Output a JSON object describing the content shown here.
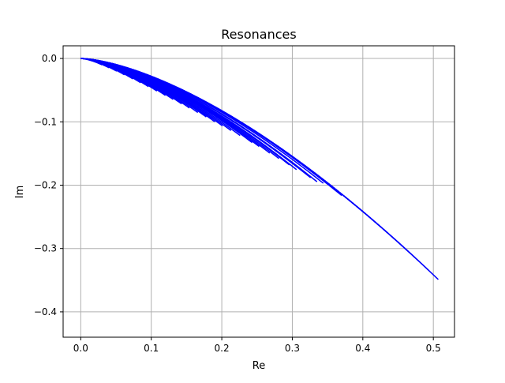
{
  "chart_data": {
    "type": "line",
    "title": "Resonances",
    "xlabel": "Re",
    "ylabel": "Im",
    "xlim": [
      -0.025,
      0.53
    ],
    "ylim": [
      -0.44,
      0.02
    ],
    "grid": true,
    "legend": "none",
    "line_color": "#0000ff",
    "x_ticks": [
      "0.0",
      "0.1",
      "0.2",
      "0.3",
      "0.4",
      "0.5"
    ],
    "x_tick_values": [
      0.0,
      0.1,
      0.2,
      0.3,
      0.4,
      0.5
    ],
    "y_ticks": [
      "0.0",
      "−0.1",
      "−0.2",
      "−0.3",
      "−0.4"
    ],
    "y_tick_values": [
      0.0,
      -0.1,
      -0.2,
      -0.3,
      -0.4
    ],
    "curve_model": "Im = a * Re^p",
    "curves": [
      {
        "a": -1.0,
        "p": 1.55,
        "x_end": 0.507
      },
      {
        "a": -1.0,
        "p": 1.55,
        "x_end": 0.493
      },
      {
        "a": -1.0,
        "p": 1.55,
        "x_end": 0.474
      },
      {
        "a": -1.0,
        "p": 1.55,
        "x_end": 0.462
      },
      {
        "a": -1.0,
        "p": 1.55,
        "x_end": 0.435
      },
      {
        "a": -1.0,
        "p": 1.55,
        "x_end": 0.422
      },
      {
        "a": -1.0,
        "p": 1.55,
        "x_end": 0.404
      },
      {
        "a": -1.0,
        "p": 1.55,
        "x_end": 0.396
      },
      {
        "a": -1.01,
        "p": 1.55,
        "x_end": 0.37
      },
      {
        "a": -1.03,
        "p": 1.55,
        "x_end": 0.344
      },
      {
        "a": -1.06,
        "p": 1.55,
        "x_end": 0.335
      },
      {
        "a": -1.07,
        "p": 1.55,
        "x_end": 0.326
      },
      {
        "a": -1.1,
        "p": 1.55,
        "x_end": 0.306
      },
      {
        "a": -1.11,
        "p": 1.55,
        "x_end": 0.296
      },
      {
        "a": -1.13,
        "p": 1.55,
        "x_end": 0.281
      },
      {
        "a": -1.15,
        "p": 1.55,
        "x_end": 0.268
      },
      {
        "a": -1.17,
        "p": 1.55,
        "x_end": 0.253
      },
      {
        "a": -1.19,
        "p": 1.55,
        "x_end": 0.243
      },
      {
        "a": -1.22,
        "p": 1.55,
        "x_end": 0.226
      },
      {
        "a": -1.25,
        "p": 1.55,
        "x_end": 0.213
      },
      {
        "a": -1.28,
        "p": 1.55,
        "x_end": 0.201
      },
      {
        "a": -1.31,
        "p": 1.55,
        "x_end": 0.19
      },
      {
        "a": -1.34,
        "p": 1.55,
        "x_end": 0.178
      },
      {
        "a": -1.38,
        "p": 1.55,
        "x_end": 0.166
      },
      {
        "a": -1.42,
        "p": 1.55,
        "x_end": 0.154
      },
      {
        "a": -1.46,
        "p": 1.55,
        "x_end": 0.143
      },
      {
        "a": -1.51,
        "p": 1.55,
        "x_end": 0.131
      },
      {
        "a": -1.56,
        "p": 1.55,
        "x_end": 0.12
      },
      {
        "a": -1.62,
        "p": 1.55,
        "x_end": 0.108
      },
      {
        "a": -1.68,
        "p": 1.55,
        "x_end": 0.096
      },
      {
        "a": -1.75,
        "p": 1.55,
        "x_end": 0.085
      },
      {
        "a": -1.83,
        "p": 1.55,
        "x_end": 0.074
      },
      {
        "a": -1.92,
        "p": 1.55,
        "x_end": 0.062
      },
      {
        "a": -2.02,
        "p": 1.55,
        "x_end": 0.051
      },
      {
        "a": -2.15,
        "p": 1.55,
        "x_end": 0.04
      },
      {
        "a": -2.3,
        "p": 1.55,
        "x_end": 0.03
      }
    ]
  }
}
